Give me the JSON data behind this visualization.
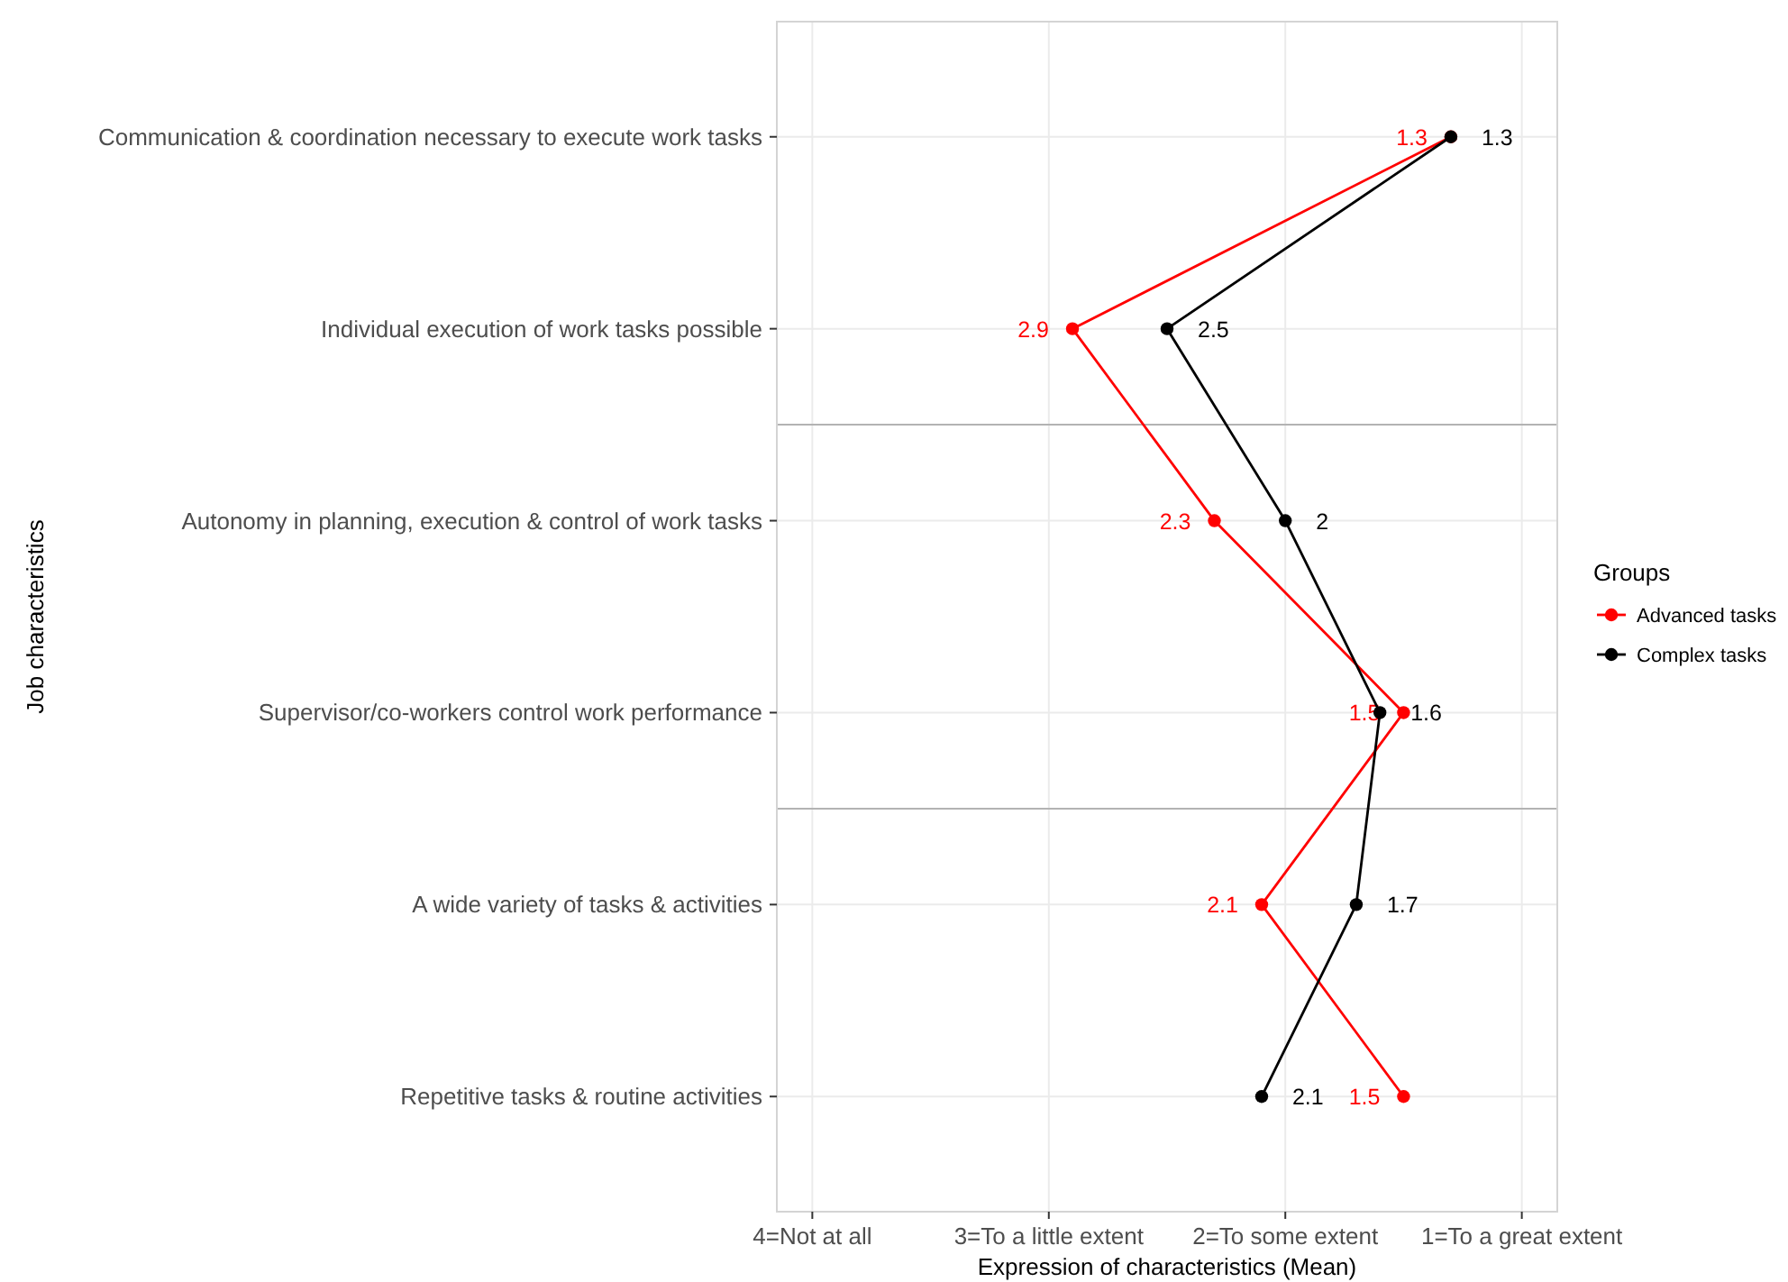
{
  "chart_data": {
    "type": "line",
    "orientation": "horizontal",
    "xlabel": "Expression of characteristics (Mean)",
    "ylabel": "Job characteristics",
    "legend_title": "Groups",
    "categories": [
      "Communication & coordination necessary to execute work tasks",
      "Individual execution of work tasks possible",
      "Autonomy in planning, execution & control of work tasks",
      "Supervisor/co-workers control work performance",
      "A wide variety of tasks & activities",
      "Repetitive tasks & routine activities"
    ],
    "series": [
      {
        "name": "Advanced tasks",
        "color": "#ff0000",
        "values": [
          1.3,
          2.9,
          2.3,
          1.5,
          2.1,
          1.5
        ]
      },
      {
        "name": "Complex tasks",
        "color": "#000000",
        "values": [
          1.3,
          2.5,
          2,
          1.6,
          1.7,
          2.1
        ]
      }
    ],
    "xlim": [
      4.15,
      0.85
    ],
    "xticks": [
      {
        "value": 4,
        "label": "4=Not at all"
      },
      {
        "value": 3,
        "label": "3=To a little extent"
      },
      {
        "value": 2,
        "label": "2=To some extent"
      },
      {
        "value": 1,
        "label": "1=To a great extent"
      }
    ],
    "data_labels": true,
    "grid": true,
    "legend": "right",
    "marker": "circle",
    "line_style": "solid"
  }
}
